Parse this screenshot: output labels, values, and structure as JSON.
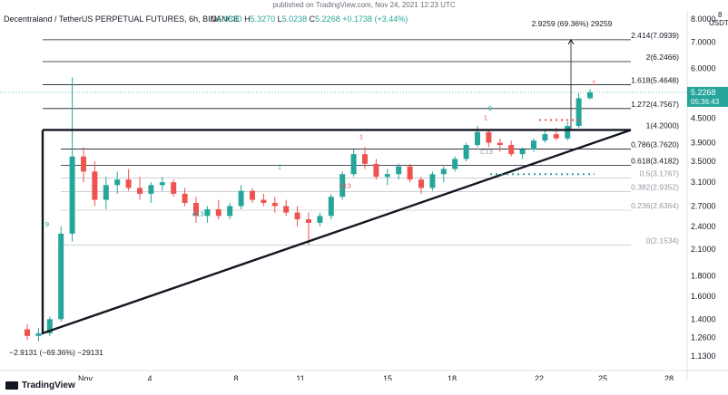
{
  "caption": "published on TradingView.com, Nov 24, 2021 12:23 UTC",
  "header": {
    "symbol": "Decentraland / TetherUS PERPETUAL FUTURES, 6h, BINANCE",
    "o_label": "O",
    "o_value": "5.0530",
    "h_label": "H",
    "h_value": "5.3270",
    "l_label": "L",
    "l_value": "5.0238",
    "c_label": "C",
    "c_value": "5.2268",
    "change": "+0.1738 (+3.44%)"
  },
  "price_tag": {
    "price": "5.2268",
    "countdown": "05:36:43"
  },
  "currency": "USDT",
  "axis_top_mark": "8",
  "footer": {
    "logo_text": "TradingView"
  },
  "colors": {
    "up": "#26a69a",
    "down": "#ef5350",
    "accent": "#26a69a",
    "fib": "#131722"
  },
  "chart_data": {
    "type": "candlestick",
    "y_scale": "log",
    "ylim": [
      1.05,
      8.3
    ],
    "y_ticks": [
      "8.0000",
      "7.0000",
      "6.0000",
      "5.0000",
      "4.5000",
      "3.9000",
      "3.5000",
      "3.1000",
      "2.7000",
      "2.4000",
      "2.1000",
      "1.8000",
      "1.6000",
      "1.4000",
      "1.2600",
      "1.1300"
    ],
    "x_ticks": [
      "Nov",
      "4",
      "8",
      "11",
      "15",
      "18",
      "22",
      "25",
      "28"
    ],
    "fib_levels": [
      {
        "label": "2.414(7.0939)",
        "value": 7.0939,
        "solid": true
      },
      {
        "label": "2(6.2466)",
        "value": 6.2466,
        "solid": true
      },
      {
        "label": "1.618(5.4648)",
        "value": 5.4648,
        "solid": true
      },
      {
        "label": "1.272(4.7567)",
        "value": 4.7567,
        "solid": true
      },
      {
        "label": "1(4.2000)",
        "value": 4.2,
        "solid": true
      },
      {
        "label": "0.786(3.7620)",
        "value": 3.762,
        "solid": true
      },
      {
        "label": "0.618(3.4182)",
        "value": 3.4182,
        "solid": true
      },
      {
        "label": "0.5(3.1767)",
        "value": 3.1767,
        "solid": false
      },
      {
        "label": "0.382(2.9352)",
        "value": 2.9352,
        "solid": false
      },
      {
        "label": "0.236(2.6364)",
        "value": 2.6364,
        "solid": false
      },
      {
        "label": "0(2.1534)",
        "value": 2.1534,
        "solid": false
      }
    ],
    "measure_up": "2.9259 (69.36%) 29259",
    "measure_down": "−2.9131 (−69.36%) −29131",
    "sequential_labels": [
      "9",
      "1",
      "13",
      "1",
      "S13",
      "1",
      "C13",
      "A13",
      "1",
      "9",
      "9",
      "2",
      "9"
    ],
    "candles": [
      {
        "o": 1.32,
        "h": 1.36,
        "l": 1.24,
        "c": 1.27
      },
      {
        "o": 1.27,
        "h": 1.33,
        "l": 1.23,
        "c": 1.29
      },
      {
        "o": 1.29,
        "h": 1.42,
        "l": 1.27,
        "c": 1.4
      },
      {
        "o": 1.4,
        "h": 2.4,
        "l": 1.38,
        "c": 2.3
      },
      {
        "o": 2.3,
        "h": 5.7,
        "l": 2.2,
        "c": 3.6
      },
      {
        "o": 3.6,
        "h": 3.8,
        "l": 3.1,
        "c": 3.3
      },
      {
        "o": 3.3,
        "h": 3.5,
        "l": 2.7,
        "c": 2.8
      },
      {
        "o": 2.8,
        "h": 3.2,
        "l": 2.65,
        "c": 3.05
      },
      {
        "o": 3.05,
        "h": 3.3,
        "l": 2.9,
        "c": 3.15
      },
      {
        "o": 3.15,
        "h": 3.35,
        "l": 2.95,
        "c": 3.0
      },
      {
        "o": 3.0,
        "h": 3.2,
        "l": 2.8,
        "c": 2.9
      },
      {
        "o": 2.9,
        "h": 3.1,
        "l": 2.75,
        "c": 3.05
      },
      {
        "o": 3.05,
        "h": 3.2,
        "l": 2.95,
        "c": 3.1
      },
      {
        "o": 3.1,
        "h": 3.15,
        "l": 2.85,
        "c": 2.9
      },
      {
        "o": 2.9,
        "h": 3.0,
        "l": 2.7,
        "c": 2.75
      },
      {
        "o": 2.75,
        "h": 2.85,
        "l": 2.45,
        "c": 2.55
      },
      {
        "o": 2.55,
        "h": 2.7,
        "l": 2.45,
        "c": 2.65
      },
      {
        "o": 2.65,
        "h": 2.8,
        "l": 2.5,
        "c": 2.55
      },
      {
        "o": 2.55,
        "h": 2.75,
        "l": 2.5,
        "c": 2.7
      },
      {
        "o": 2.7,
        "h": 3.05,
        "l": 2.65,
        "c": 2.95
      },
      {
        "o": 2.95,
        "h": 3.0,
        "l": 2.75,
        "c": 2.8
      },
      {
        "o": 2.8,
        "h": 2.9,
        "l": 2.7,
        "c": 2.75
      },
      {
        "o": 2.75,
        "h": 2.85,
        "l": 2.6,
        "c": 2.7
      },
      {
        "o": 2.7,
        "h": 2.8,
        "l": 2.55,
        "c": 2.6
      },
      {
        "o": 2.6,
        "h": 2.7,
        "l": 2.4,
        "c": 2.5
      },
      {
        "o": 2.5,
        "h": 2.6,
        "l": 2.15,
        "c": 2.45
      },
      {
        "o": 2.45,
        "h": 2.6,
        "l": 2.4,
        "c": 2.55
      },
      {
        "o": 2.55,
        "h": 2.9,
        "l": 2.5,
        "c": 2.85
      },
      {
        "o": 2.85,
        "h": 3.3,
        "l": 2.8,
        "c": 3.25
      },
      {
        "o": 3.25,
        "h": 3.75,
        "l": 3.2,
        "c": 3.65
      },
      {
        "o": 3.65,
        "h": 3.8,
        "l": 3.35,
        "c": 3.45
      },
      {
        "o": 3.45,
        "h": 3.55,
        "l": 3.15,
        "c": 3.2
      },
      {
        "o": 3.2,
        "h": 3.35,
        "l": 3.05,
        "c": 3.25
      },
      {
        "o": 3.25,
        "h": 3.45,
        "l": 3.15,
        "c": 3.4
      },
      {
        "o": 3.4,
        "h": 3.45,
        "l": 3.1,
        "c": 3.15
      },
      {
        "o": 3.15,
        "h": 3.2,
        "l": 2.9,
        "c": 3.0
      },
      {
        "o": 3.0,
        "h": 3.3,
        "l": 2.95,
        "c": 3.25
      },
      {
        "o": 3.25,
        "h": 3.4,
        "l": 3.1,
        "c": 3.35
      },
      {
        "o": 3.35,
        "h": 3.6,
        "l": 3.3,
        "c": 3.55
      },
      {
        "o": 3.55,
        "h": 3.9,
        "l": 3.5,
        "c": 3.85
      },
      {
        "o": 3.85,
        "h": 4.3,
        "l": 3.8,
        "c": 4.15
      },
      {
        "o": 4.15,
        "h": 4.2,
        "l": 3.8,
        "c": 3.9
      },
      {
        "o": 3.9,
        "h": 4.0,
        "l": 3.7,
        "c": 3.85
      },
      {
        "o": 3.85,
        "h": 3.95,
        "l": 3.6,
        "c": 3.65
      },
      {
        "o": 3.65,
        "h": 3.8,
        "l": 3.55,
        "c": 3.75
      },
      {
        "o": 3.75,
        "h": 4.0,
        "l": 3.7,
        "c": 3.95
      },
      {
        "o": 3.95,
        "h": 4.2,
        "l": 3.9,
        "c": 4.1
      },
      {
        "o": 4.1,
        "h": 4.25,
        "l": 3.95,
        "c": 4.0
      },
      {
        "o": 4.0,
        "h": 4.4,
        "l": 3.95,
        "c": 4.3
      },
      {
        "o": 4.3,
        "h": 5.2,
        "l": 4.25,
        "c": 5.05
      },
      {
        "o": 5.05,
        "h": 5.33,
        "l": 5.02,
        "c": 5.23
      }
    ]
  }
}
